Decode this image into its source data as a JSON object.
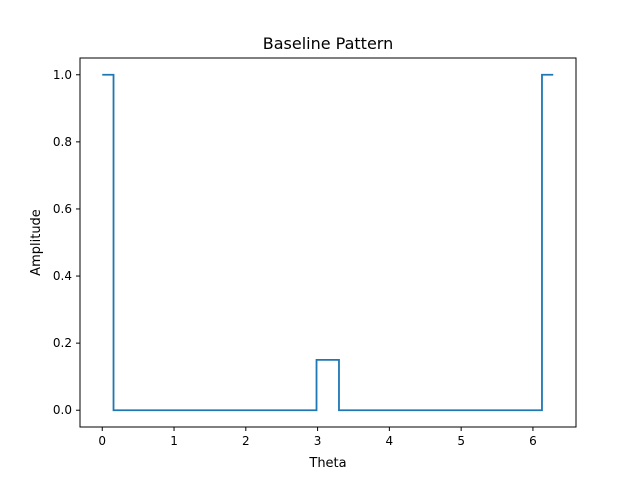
{
  "chart_data": {
    "type": "line",
    "title": "Baseline Pattern",
    "xlabel": "Theta",
    "ylabel": "Amplitude",
    "xlim": [
      -0.31,
      6.6
    ],
    "ylim": [
      -0.05,
      1.05
    ],
    "x_ticks": [
      0,
      1,
      2,
      3,
      4,
      5,
      6
    ],
    "x_tick_labels": [
      "0",
      "1",
      "2",
      "3",
      "4",
      "5",
      "6"
    ],
    "y_ticks": [
      0.0,
      0.2,
      0.4,
      0.6,
      0.8,
      1.0
    ],
    "y_tick_labels": [
      "0.0",
      "0.2",
      "0.4",
      "0.6",
      "0.8",
      "1.0"
    ],
    "grid": false,
    "legend": "none",
    "series": [
      {
        "color": "#1f77b4",
        "x": [
          0.0,
          0.157,
          0.157,
          2.985,
          2.985,
          3.298,
          3.298,
          6.126,
          6.126,
          6.283
        ],
        "y": [
          1.0,
          1.0,
          0.0,
          0.0,
          0.15,
          0.15,
          0.0,
          0.0,
          1.0,
          1.0
        ]
      }
    ]
  }
}
